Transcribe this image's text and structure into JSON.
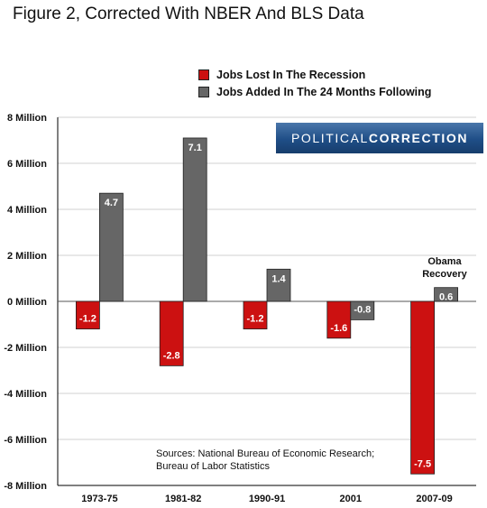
{
  "title": "Figure 2, Corrected With NBER And BLS Data",
  "logo": {
    "regular": "POLITICAL",
    "bold": "CORRECTION"
  },
  "source": [
    "Sources: National Bureau of Economic Research;",
    "Bureau of Labor Statistics"
  ],
  "annotation": [
    "Obama",
    "Recovery"
  ],
  "colors": {
    "lost": "#cc1111",
    "added": "#666666",
    "grid": "#d0d0d0",
    "axis": "#000000"
  },
  "chart_data": {
    "type": "bar",
    "categories": [
      "1973-75",
      "1981-82",
      "1990-91",
      "2001",
      "2007-09"
    ],
    "series": [
      {
        "name": "Jobs Lost In The Recession",
        "values": [
          -1.2,
          -2.8,
          -1.2,
          -1.6,
          -7.5
        ],
        "labels": [
          "-1.2",
          "-2.8",
          "-1.2",
          "-1.6",
          "-7.5"
        ]
      },
      {
        "name": "Jobs Added In The 24 Months Following",
        "values": [
          4.7,
          7.1,
          1.4,
          -0.8,
          0.6
        ],
        "labels": [
          "4.7",
          "7.1",
          "1.4",
          "-0.8",
          "0.6"
        ]
      }
    ],
    "yticks": [
      8,
      6,
      4,
      2,
      0,
      -2,
      -4,
      -6,
      -8
    ],
    "ytick_labels": [
      "8 Million",
      "6 Million",
      "4 Million",
      "2 Million",
      "0 Million",
      "-2 Million",
      "-4 Million",
      "-6 Million",
      "-8 Million"
    ],
    "ylim": [
      -8,
      8
    ],
    "grid": true,
    "legend_position": "top"
  }
}
